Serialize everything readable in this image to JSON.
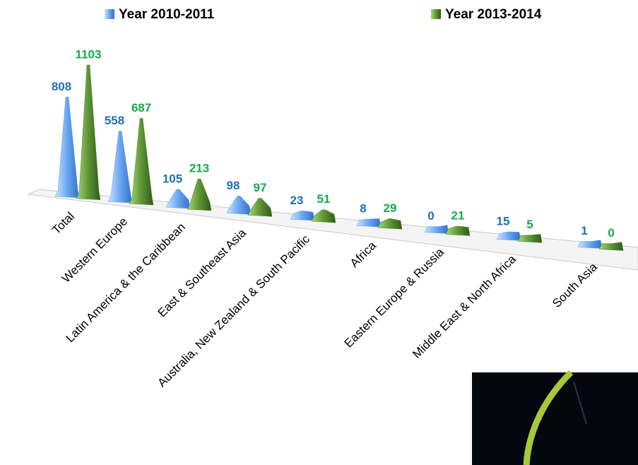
{
  "chart_data": {
    "type": "bar",
    "categories": [
      "Total",
      "Western Europe",
      "Latin America & the Caribbean",
      "East & Southeast Asia",
      "Australia, New Zealand & South Pacific",
      "Africa",
      "Eastern Europe & Russia",
      "Middle East & North Africa",
      "South Asia"
    ],
    "series": [
      {
        "name": "Year 2010-2011",
        "color": "#5b9bec",
        "label_color": "#1f6fb8",
        "values": [
          808,
          558,
          105,
          98,
          23,
          8,
          0,
          15,
          1
        ]
      },
      {
        "name": "Year 2013-2014",
        "color": "#4e8a2c",
        "label_color": "#18a84e",
        "values": [
          1103,
          687,
          213,
          97,
          51,
          29,
          21,
          5,
          0
        ]
      }
    ],
    "legend": "top"
  }
}
